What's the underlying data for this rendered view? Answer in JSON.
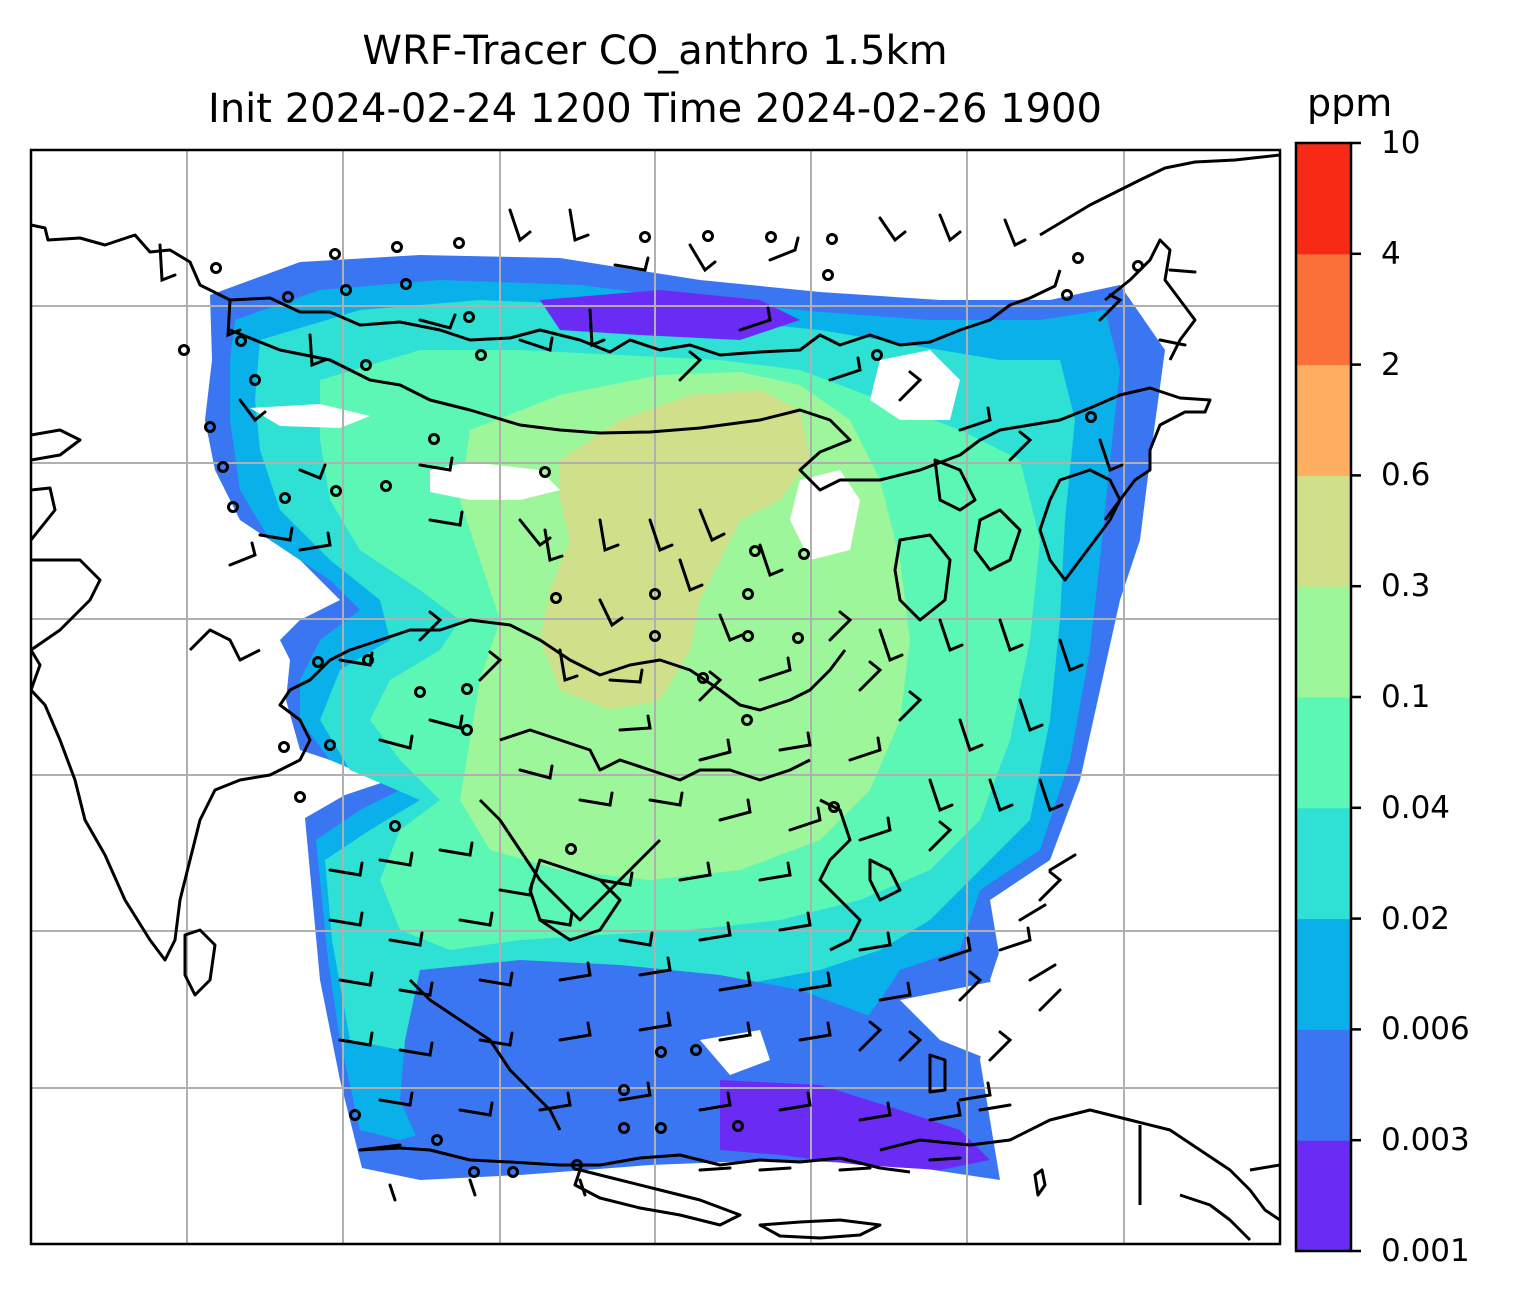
{
  "title": {
    "line1": "WRF-Tracer CO_anthro 1.5km",
    "line2": "Init 2024-02-24 1200 Time 2024-02-26 1900"
  },
  "colorbar": {
    "unit": "ppm",
    "levels": [
      "0.001",
      "0.003",
      "0.006",
      "0.02",
      "0.04",
      "0.1",
      "0.3",
      "0.6",
      "2",
      "4",
      "10"
    ],
    "colors": [
      "#6a2cf5",
      "#3a76f2",
      "#09b0ea",
      "#2fe0d4",
      "#5cf7b4",
      "#9df79a",
      "#d0e08a",
      "#fdae61",
      "#fb7038",
      "#f82a16"
    ]
  },
  "map": {
    "gridlines": true,
    "gridline_color": "#b0b0b0",
    "coastline_color": "#000000",
    "field_variable": "CO_anthro",
    "wind_symbols": "barbs"
  }
}
